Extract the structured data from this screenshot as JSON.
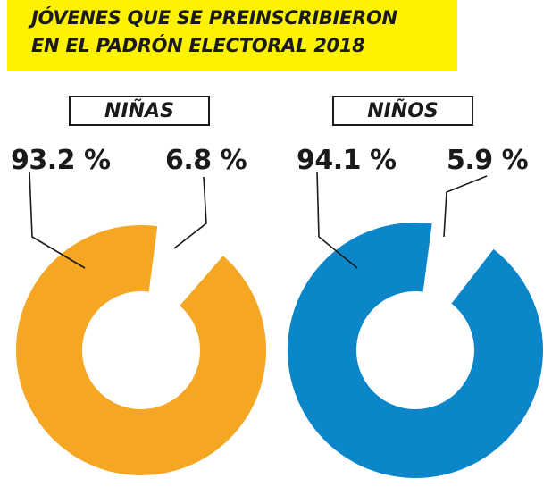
{
  "title": {
    "line1": "JÓVENES QUE SE PREINSCRIBIERON",
    "line2": "EN EL PADRÓN ELECTORAL 2018"
  },
  "colors": {
    "title_background": "#fff200",
    "ninas": "#f5a623",
    "ninos": "#0a86c9",
    "text": "#1a1a1a"
  },
  "chart_data": [
    {
      "type": "pie",
      "title": "NIÑAS",
      "slices": [
        {
          "value": 93.2,
          "label": "93.2 %",
          "color": "#f5a623",
          "exploded": false
        },
        {
          "value": 6.8,
          "label": "6.8 %",
          "color": "#ffffff",
          "exploded": true
        }
      ]
    },
    {
      "type": "pie",
      "title": "NIÑOS",
      "slices": [
        {
          "value": 94.1,
          "label": "94.1 %",
          "color": "#0a86c9",
          "exploded": false
        },
        {
          "value": 5.9,
          "label": "5.9 %",
          "color": "#ffffff",
          "exploded": true
        }
      ]
    }
  ]
}
